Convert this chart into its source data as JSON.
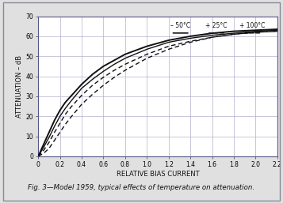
{
  "title": "Fig. 3—Model 1959, typical effects of temperature on attenuation.",
  "xlabel": "RELATIVE BIAS CURRENT",
  "ylabel": "ATTENUATION – dB",
  "xlim": [
    0,
    2.2
  ],
  "ylim": [
    0,
    70
  ],
  "xticks": [
    0,
    0.2,
    0.4,
    0.6,
    0.8,
    1.0,
    1.2,
    1.4,
    1.6,
    1.8,
    2.0,
    2.2
  ],
  "yticks": [
    0,
    10,
    20,
    30,
    40,
    50,
    60,
    70
  ],
  "grid_color": "#b0b0cc",
  "plot_bg": "#ffffff",
  "outer_bg": "#e0e0e0",
  "legend_labels": [
    "– 50°C",
    "+ 25°C",
    "+ 100°C"
  ],
  "curves": {
    "minus50_upper": {
      "x": [
        0,
        0.05,
        0.1,
        0.15,
        0.2,
        0.25,
        0.3,
        0.4,
        0.5,
        0.6,
        0.7,
        0.8,
        1.0,
        1.2,
        1.4,
        1.6,
        1.8,
        2.0,
        2.2
      ],
      "y": [
        0,
        6,
        12,
        18,
        23,
        27,
        30,
        36,
        41,
        45,
        48,
        51,
        55,
        58,
        60,
        61.5,
        62.5,
        63,
        63.5
      ]
    },
    "minus50_lower": {
      "x": [
        0,
        0.05,
        0.1,
        0.15,
        0.2,
        0.25,
        0.3,
        0.4,
        0.5,
        0.6,
        0.7,
        0.8,
        1.0,
        1.2,
        1.4,
        1.6,
        1.8,
        2.0,
        2.2
      ],
      "y": [
        0,
        4.5,
        9.5,
        15,
        20,
        24,
        27.5,
        34,
        38.5,
        42.5,
        46,
        49,
        53.5,
        57,
        59,
        60.5,
        61.5,
        62.5,
        63
      ]
    },
    "plus25": {
      "x": [
        0,
        0.05,
        0.1,
        0.15,
        0.2,
        0.25,
        0.3,
        0.4,
        0.5,
        0.6,
        0.7,
        0.8,
        1.0,
        1.2,
        1.4,
        1.6,
        1.8,
        2.0,
        2.2
      ],
      "y": [
        0,
        3,
        7,
        12,
        16.5,
        21,
        24.5,
        30.5,
        35.5,
        39.5,
        43,
        46,
        51,
        55,
        57.5,
        59.5,
        61,
        62,
        62.5
      ]
    },
    "plus100": {
      "x": [
        0,
        0.05,
        0.1,
        0.15,
        0.2,
        0.25,
        0.3,
        0.4,
        0.5,
        0.6,
        0.7,
        0.8,
        1.0,
        1.2,
        1.4,
        1.6,
        1.8,
        2.0,
        2.2
      ],
      "y": [
        0,
        1.5,
        4,
        8,
        12,
        16,
        19.5,
        26,
        31,
        35.5,
        39.5,
        43,
        49,
        53.5,
        57,
        59.5,
        61,
        62,
        62.5
      ]
    }
  }
}
